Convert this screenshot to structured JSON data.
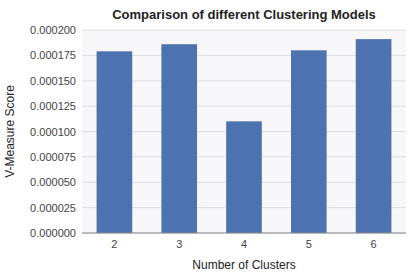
{
  "chart_data": {
    "type": "bar",
    "title": "Comparison of different Clustering Models",
    "xlabel": "Number of Clusters",
    "ylabel": "V-Measure Score",
    "categories": [
      2,
      3,
      4,
      5,
      6
    ],
    "values": [
      0.000179,
      0.000186,
      0.00011,
      0.00018,
      0.000191
    ],
    "color": "#4c72b0",
    "ylim": [
      0,
      0.0002
    ],
    "yticks": [
      {
        "value": 0,
        "label": "0.000000"
      },
      {
        "value": 2.5e-05,
        "label": "0.000025"
      },
      {
        "value": 5e-05,
        "label": "0.000050"
      },
      {
        "value": 7.5e-05,
        "label": "0.000075"
      },
      {
        "value": 0.0001,
        "label": "0.000100"
      },
      {
        "value": 0.000125,
        "label": "0.000125"
      },
      {
        "value": 0.00015,
        "label": "0.000150"
      },
      {
        "value": 0.000175,
        "label": "0.000175"
      },
      {
        "value": 0.0002,
        "label": "0.000200"
      }
    ],
    "grid": true
  }
}
